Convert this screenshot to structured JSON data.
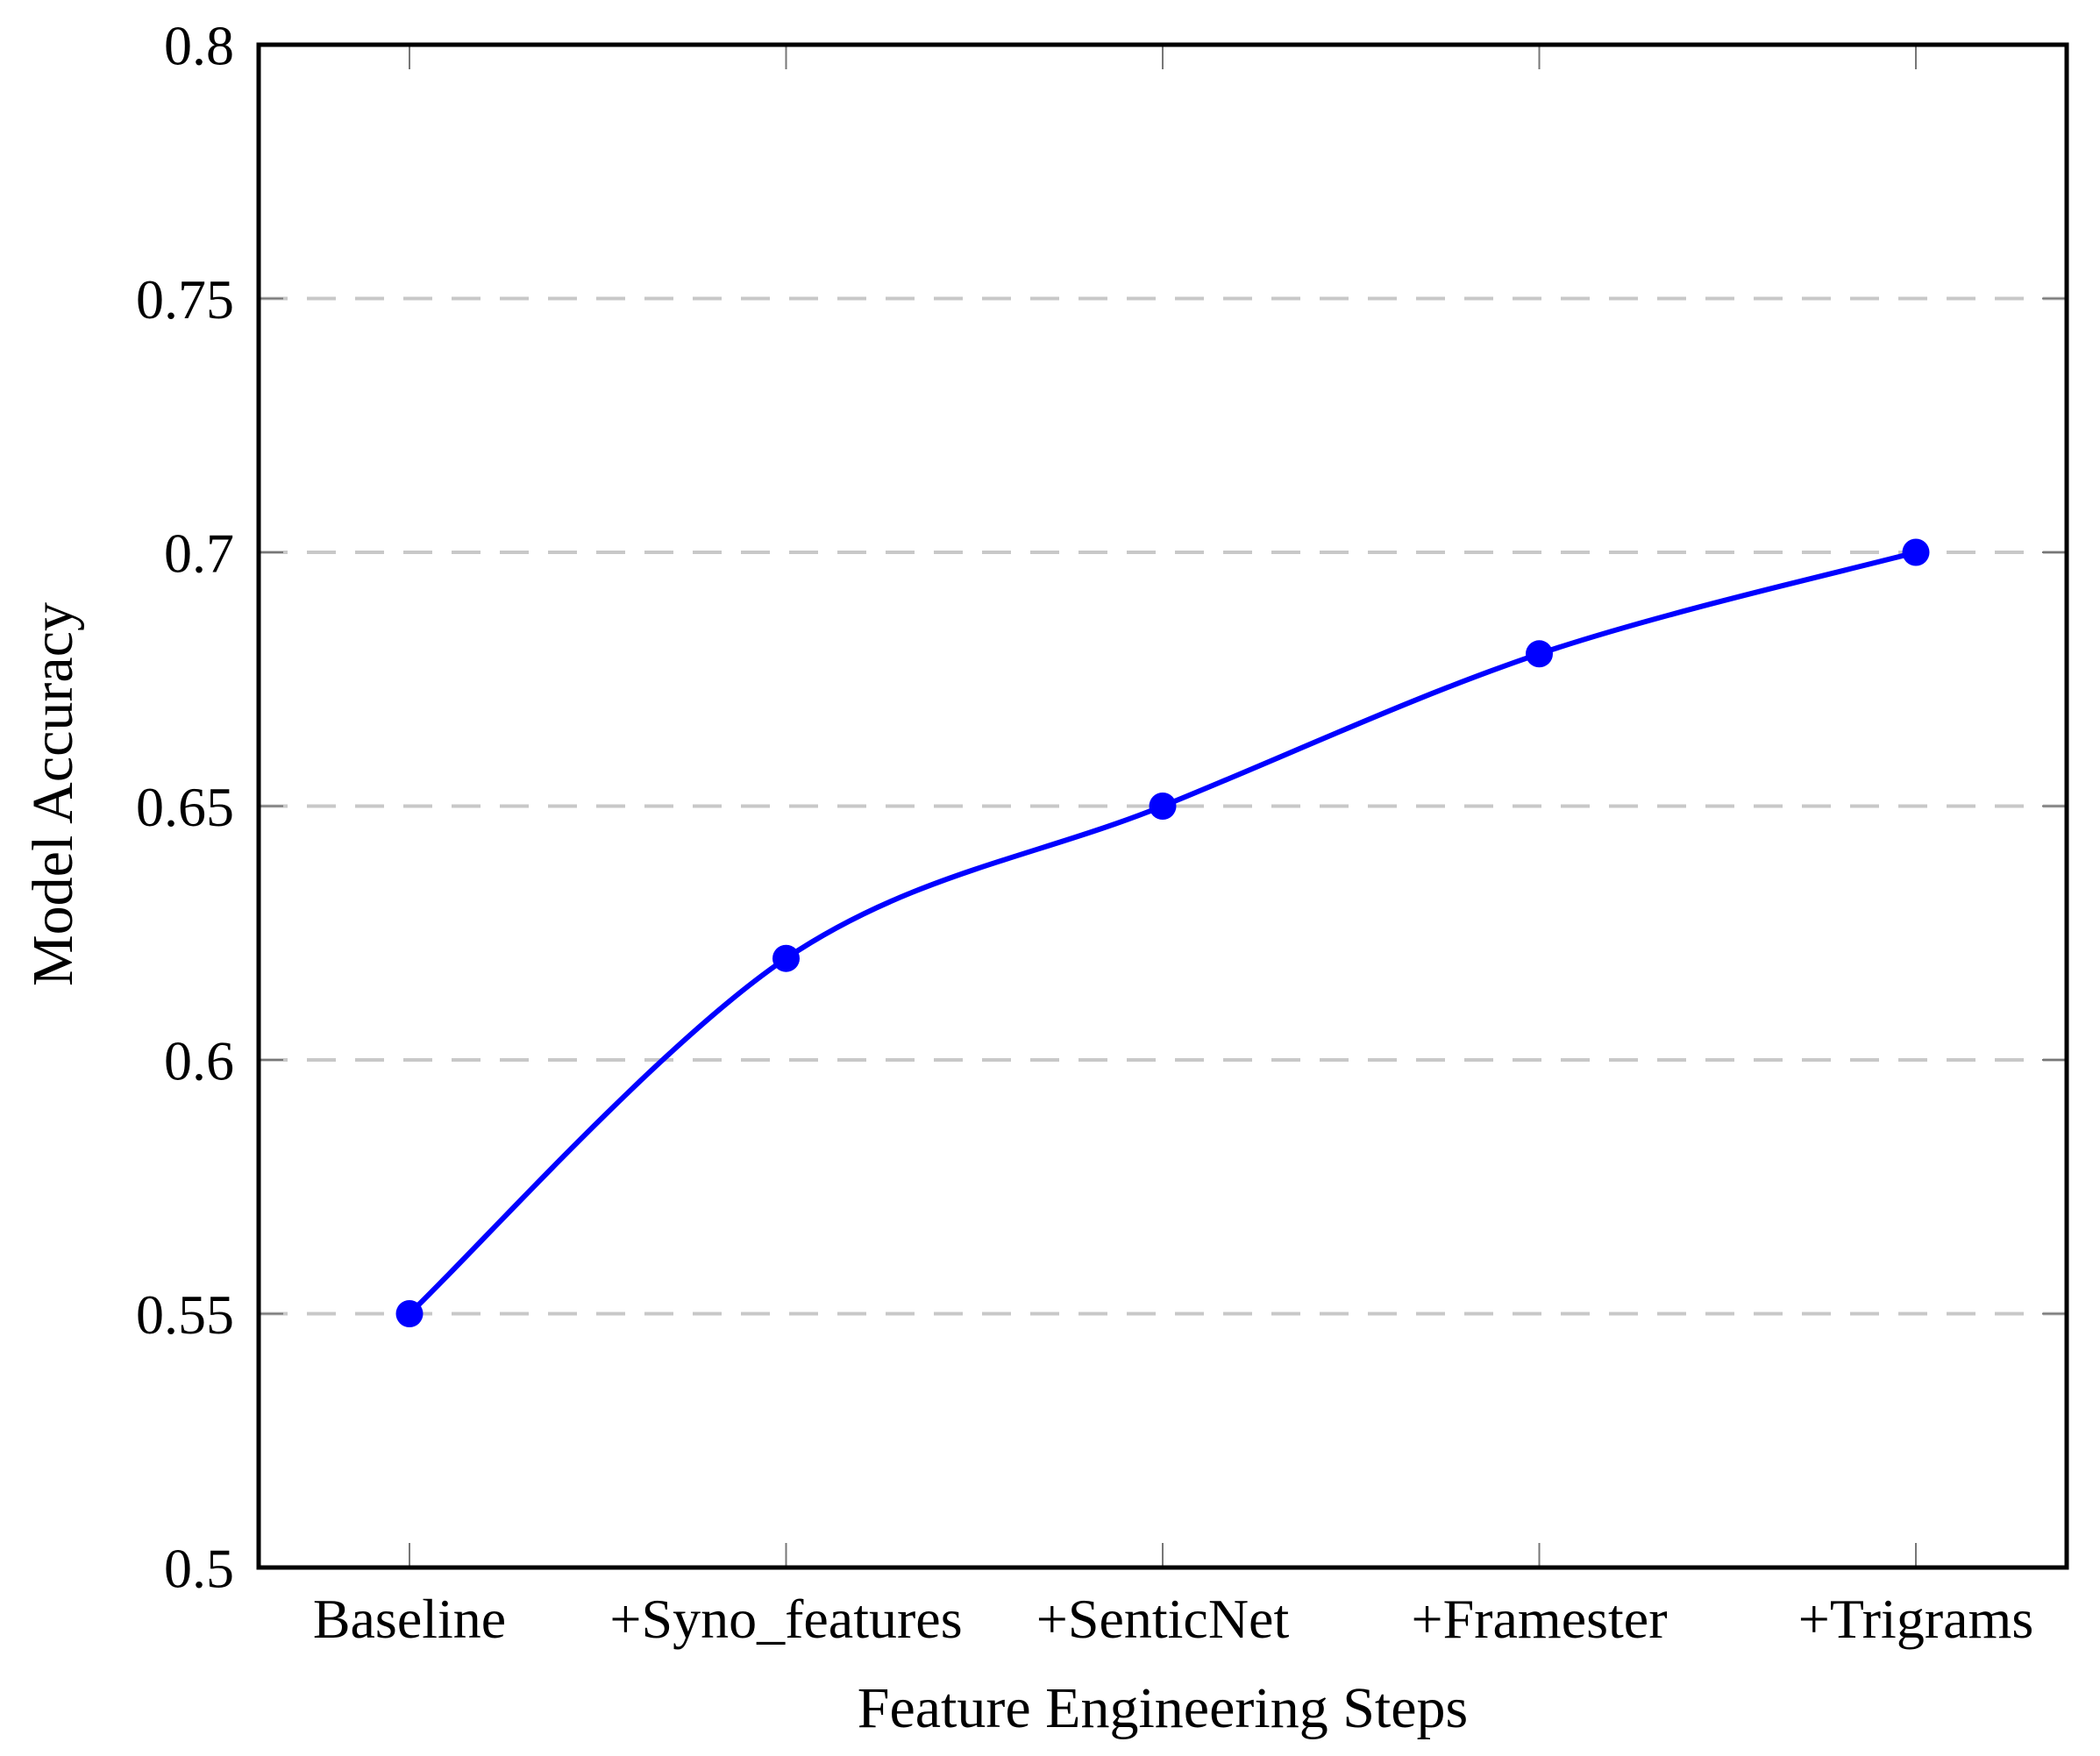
{
  "chart_data": {
    "type": "line",
    "title": "",
    "categories": [
      "Baseline",
      "+Syno_features",
      "+SenticNet",
      "+Framester",
      "+Trigrams"
    ],
    "series": [
      {
        "name": "Model Accuracy",
        "values": [
          0.55,
          0.62,
          0.65,
          0.68,
          0.7
        ]
      }
    ],
    "xlabel": "Feature Engineering Steps",
    "ylabel": "Model Accuracy",
    "ylim": [
      0.5,
      0.8
    ],
    "yticks": [
      0.5,
      0.55,
      0.6,
      0.65,
      0.7,
      0.75,
      0.8
    ],
    "ytick_labels": [
      "0.5",
      "0.55",
      "0.6",
      "0.65",
      "0.7",
      "0.75",
      "0.8"
    ],
    "grid_values": [
      0.55,
      0.6,
      0.65,
      0.7,
      0.75
    ],
    "grid_style": "dashed horizontal",
    "legend_position": "none",
    "smooth": true,
    "marker": "filled-circle",
    "colors": {
      "line": "#0000ff",
      "marker": "#0000ff",
      "grid": "#c8c8c8",
      "frame": "#000000",
      "tick": "#777777",
      "text": "#000000"
    }
  }
}
